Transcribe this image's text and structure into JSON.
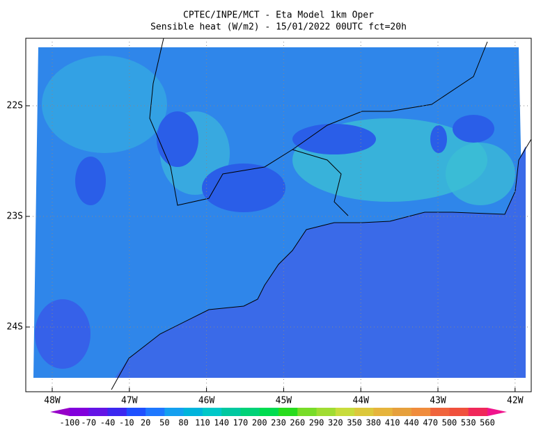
{
  "title": [
    "CPTEC/INPE/MCT -  Eta Model 1km Oper",
    "Sensible heat (W/m2) - 15/01/2022 00UTC fct=20h"
  ],
  "lat_labels": [
    "22S",
    "23S",
    "24S"
  ],
  "lon_labels": [
    "48W",
    "47W",
    "46W",
    "45W",
    "44W",
    "43W",
    "42W"
  ],
  "colorbar": {
    "labels": [
      -100,
      -70,
      -40,
      -10,
      20,
      50,
      80,
      110,
      140,
      170,
      200,
      230,
      260,
      290,
      320,
      350,
      380,
      410,
      440,
      470,
      500,
      530,
      560
    ],
    "colors": [
      "#9600c8",
      "#8200dc",
      "#6414e6",
      "#3c28f0",
      "#1e50ff",
      "#1e78ff",
      "#14a0f0",
      "#00b4dc",
      "#00c8c8",
      "#00c8a0",
      "#00d278",
      "#00dc50",
      "#28dc1e",
      "#78dc28",
      "#a0dc32",
      "#c8dc3c",
      "#dcc83c",
      "#e6b43c",
      "#e6a03c",
      "#f08c3c",
      "#f0643c",
      "#f0503c",
      "#f0285a",
      "#f0148c"
    ]
  }
}
